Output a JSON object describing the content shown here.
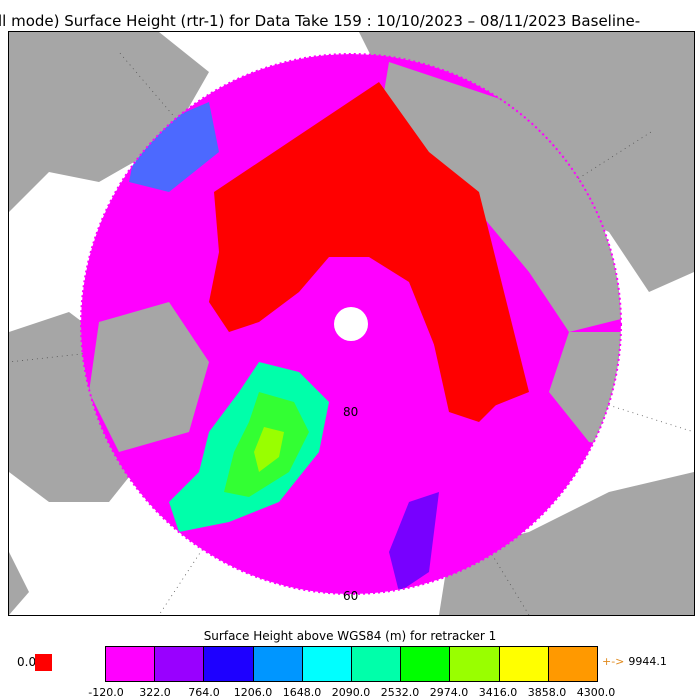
{
  "title": "ll mode) Surface Height (rtr-1) for Data Take 159 : 10/10/2023 – 08/11/2023 Baseline-",
  "map": {
    "latitude_labels": [
      "80",
      "60"
    ],
    "colors": {
      "land": "#a6a6a6",
      "ocean": "#ffffff",
      "sea_ice": "#ff0000",
      "low_height": "#ff00ff",
      "ice_sheet_high": "#33ff33"
    }
  },
  "colorbar": {
    "title": "Surface Height above WGS84 (m) for retracker 1",
    "ticks": [
      "-120.0",
      "322.0",
      "764.0",
      "1206.0",
      "1648.0",
      "2090.0",
      "2532.0",
      "2974.0",
      "3416.0",
      "3858.0",
      "4300.0"
    ],
    "colors": [
      "#ff00ff",
      "#9900ff",
      "#1e00ff",
      "#0096ff",
      "#00ffff",
      "#00ffaa",
      "#00ff00",
      "#99ff00",
      "#ffff00",
      "#ff9900"
    ],
    "zero_label": "0.0",
    "zero_color": "#ff0000",
    "max_label": "9944.1",
    "max_arrow": "+->"
  }
}
